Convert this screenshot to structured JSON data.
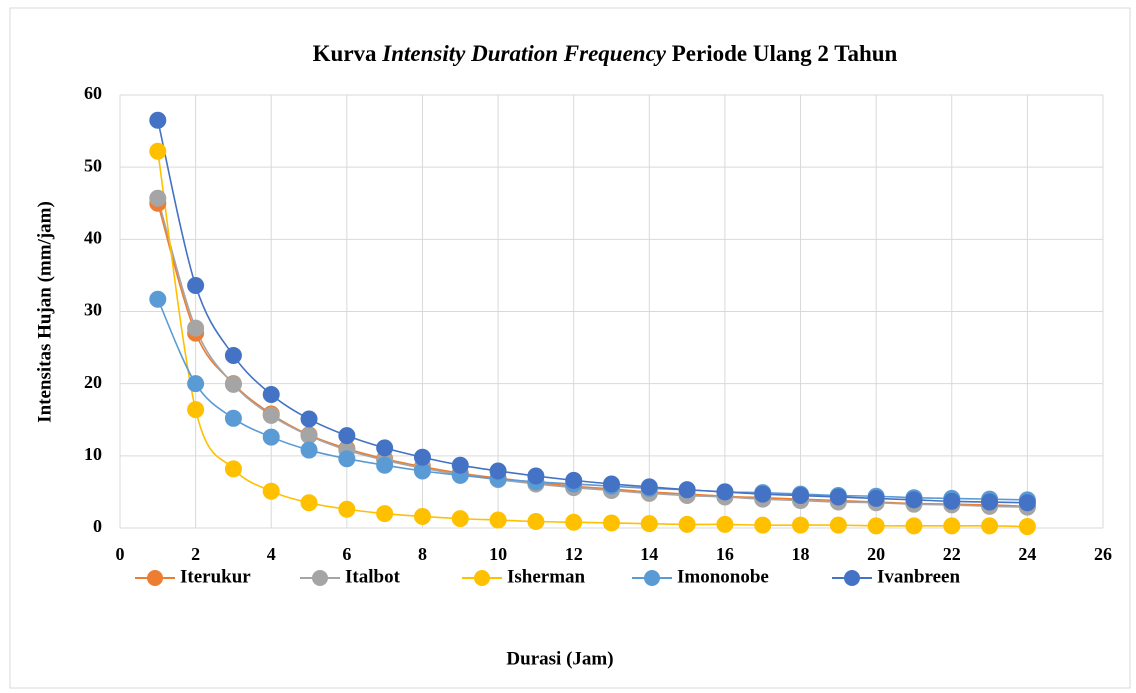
{
  "chart_data": {
    "type": "line",
    "title": [
      "Kurva",
      "Intensity Duration Frequency",
      "Periode Ulang 2 Tahun"
    ],
    "x_label": "Durasi (Jam)",
    "y_label": "Intensitas Hujan (mm/jam)",
    "x": [
      1,
      2,
      3,
      4,
      5,
      6,
      7,
      8,
      9,
      10,
      11,
      12,
      13,
      14,
      15,
      16,
      17,
      18,
      19,
      20,
      21,
      22,
      23,
      24
    ],
    "series": [
      {
        "name": "Iterukur",
        "color": "#ed7d31",
        "values": [
          45.0,
          27.0,
          20.0,
          15.8,
          12.9,
          11.0,
          9.6,
          8.5,
          7.6,
          6.9,
          6.3,
          5.8,
          5.4,
          5.0,
          4.7,
          4.4,
          4.2,
          4.0,
          3.8,
          3.6,
          3.4,
          3.3,
          3.2,
          3.0
        ]
      },
      {
        "name": "Italbot",
        "color": "#a5a5a5",
        "values": [
          45.7,
          27.7,
          19.9,
          15.6,
          12.8,
          10.8,
          9.4,
          8.3,
          7.4,
          6.7,
          6.1,
          5.6,
          5.2,
          4.8,
          4.5,
          4.3,
          4.0,
          3.8,
          3.6,
          3.5,
          3.3,
          3.2,
          3.0,
          2.9
        ]
      },
      {
        "name": "Isherman",
        "color": "#ffc000",
        "values": [
          52.2,
          16.4,
          8.2,
          5.1,
          3.5,
          2.6,
          2.0,
          1.6,
          1.3,
          1.1,
          0.9,
          0.8,
          0.7,
          0.6,
          0.5,
          0.5,
          0.4,
          0.4,
          0.4,
          0.3,
          0.3,
          0.3,
          0.3,
          0.2
        ]
      },
      {
        "name": "Imononobe",
        "color": "#5b9bd5",
        "values": [
          31.7,
          20.0,
          15.2,
          12.6,
          10.8,
          9.6,
          8.7,
          7.9,
          7.3,
          6.8,
          6.4,
          6.1,
          5.8,
          5.5,
          5.3,
          5.0,
          4.9,
          4.7,
          4.5,
          4.4,
          4.2,
          4.1,
          4.0,
          3.9
        ]
      },
      {
        "name": "Ivanbreen",
        "color": "#4472c4",
        "values": [
          56.5,
          33.6,
          23.9,
          18.5,
          15.1,
          12.8,
          11.1,
          9.8,
          8.7,
          7.9,
          7.2,
          6.6,
          6.1,
          5.7,
          5.3,
          5.0,
          4.7,
          4.5,
          4.3,
          4.1,
          3.9,
          3.7,
          3.6,
          3.5
        ]
      }
    ],
    "xlim": [
      0,
      26
    ],
    "xticks": [
      0,
      2,
      4,
      6,
      8,
      10,
      12,
      14,
      16,
      18,
      20,
      22,
      24,
      26
    ],
    "ylim": [
      0,
      60
    ],
    "yticks": [
      0,
      10,
      20,
      30,
      40,
      50,
      60
    ],
    "grid": true,
    "legend": "bottom"
  }
}
